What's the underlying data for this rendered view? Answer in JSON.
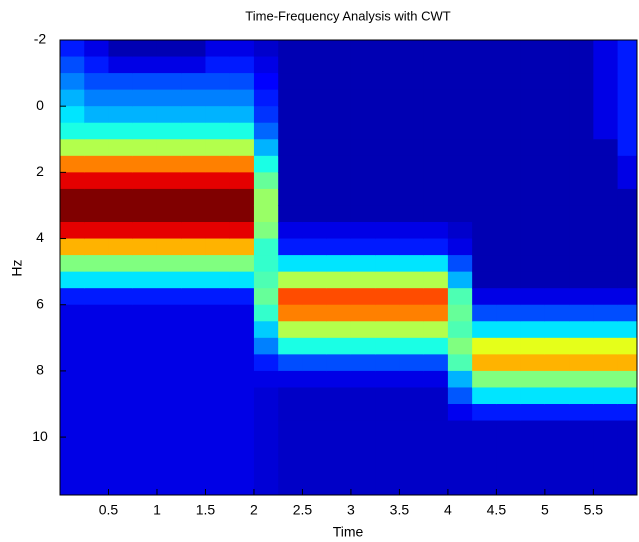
{
  "chart_data": {
    "type": "heatmap",
    "title": "Time-Frequency Analysis with CWT",
    "x_label": "Time",
    "y_label": "Hz",
    "colormap": "jet",
    "clim": [
      0,
      10
    ],
    "xlim": [
      0,
      5.95
    ],
    "ylim": [
      -2,
      11.75
    ],
    "y_inverted": true,
    "xticks": [
      0.5,
      1,
      1.5,
      2,
      2.5,
      3,
      3.5,
      4,
      4.5,
      5,
      5.5
    ],
    "yticks": [
      -2,
      0,
      2,
      4,
      6,
      8,
      10
    ],
    "x": [
      0.125,
      0.375,
      0.625,
      0.875,
      1.125,
      1.375,
      1.625,
      1.875,
      2.125,
      2.375,
      2.625,
      2.875,
      3.125,
      3.375,
      3.625,
      3.875,
      4.125,
      4.375,
      4.625,
      4.875,
      5.125,
      5.375,
      5.625,
      5.875
    ],
    "y": [
      -1.75,
      -1.25,
      -0.75,
      -0.25,
      0.25,
      0.75,
      1.25,
      1.75,
      2.25,
      2.75,
      3.25,
      3.75,
      4.25,
      4.75,
      5.25,
      5.75,
      6.25,
      6.75,
      7.25,
      7.75,
      8.25,
      8.75,
      9.25,
      9.75,
      10.25,
      10.75,
      11.25,
      11.75
    ],
    "z": [
      [
        1.5,
        2,
        2.5,
        3,
        3.5,
        4,
        5.5,
        7.5,
        9,
        10,
        10,
        9,
        7,
        5,
        3.5,
        1.5,
        1,
        1,
        1,
        1,
        1,
        1,
        1,
        1,
        1,
        1,
        1,
        1
      ],
      [
        1,
        1.5,
        2,
        2.5,
        3,
        4,
        5.5,
        7.5,
        9,
        10,
        10,
        9,
        7,
        5,
        3.5,
        1.5,
        1,
        1,
        1,
        1,
        1,
        1,
        1,
        1,
        1,
        1,
        1,
        1
      ],
      [
        0.5,
        1,
        2,
        2.5,
        3,
        4,
        5.5,
        7.5,
        9,
        10,
        10,
        9,
        7,
        5,
        3.5,
        1.5,
        1,
        1,
        1,
        1,
        1,
        1,
        1,
        1,
        1,
        1,
        1,
        1
      ],
      [
        0.5,
        1,
        2,
        2.5,
        3,
        4,
        5.5,
        7.5,
        9,
        10,
        10,
        9,
        7,
        5,
        3.5,
        1.5,
        1,
        1,
        1,
        1,
        1,
        1,
        1,
        1,
        1,
        1,
        1,
        1
      ],
      [
        0.5,
        1,
        2,
        2.5,
        3,
        4,
        5.5,
        7.5,
        9,
        10,
        10,
        9,
        7,
        5,
        3.5,
        1.5,
        1,
        1,
        1,
        1,
        1,
        1,
        1,
        1,
        1,
        1,
        1,
        1
      ],
      [
        0.5,
        1,
        2,
        2.5,
        3,
        4,
        5.5,
        7.5,
        9,
        10,
        10,
        9,
        7,
        5,
        3.5,
        1.5,
        1,
        1,
        1,
        1,
        1,
        1,
        1,
        1,
        1,
        1,
        1,
        1
      ],
      [
        1,
        1.5,
        2,
        2.5,
        3,
        4,
        5.5,
        7.5,
        9,
        10,
        10,
        9,
        7,
        5,
        3.5,
        1.5,
        1,
        1,
        1,
        1,
        1,
        1,
        1,
        1,
        1,
        1,
        1,
        1
      ],
      [
        1,
        1.5,
        2,
        2.5,
        3,
        4,
        5.5,
        7.5,
        9,
        10,
        10,
        9,
        7,
        5,
        3.5,
        1.5,
        1,
        1,
        1,
        1,
        1,
        1,
        1,
        1,
        1,
        1,
        1,
        1
      ],
      [
        0.75,
        1,
        1.25,
        1.5,
        1.75,
        2.25,
        3,
        4,
        4.75,
        5.25,
        5.25,
        5,
        4.25,
        4.25,
        4.5,
        4.75,
        4.25,
        3.25,
        2.5,
        1.5,
        1,
        0.85,
        0.85,
        0.85,
        0.85,
        0.85,
        0.85,
        0.85
      ],
      [
        0.5,
        0.5,
        0.5,
        0.5,
        0.5,
        0.5,
        0.5,
        0.5,
        0.5,
        0.5,
        0.5,
        1,
        1.5,
        3.5,
        5.5,
        8,
        7.5,
        5.5,
        4,
        2,
        1,
        0.7,
        0.7,
        0.7,
        0.7,
        0.7,
        0.7,
        0.7
      ],
      [
        0.5,
        0.5,
        0.5,
        0.5,
        0.5,
        0.5,
        0.5,
        0.5,
        0.5,
        0.5,
        0.5,
        1,
        1.5,
        3.5,
        5.5,
        8,
        7.5,
        5.5,
        4,
        2,
        1,
        0.7,
        0.7,
        0.7,
        0.7,
        0.7,
        0.7,
        0.7
      ],
      [
        0.5,
        0.5,
        0.5,
        0.5,
        0.5,
        0.5,
        0.5,
        0.5,
        0.5,
        0.5,
        0.5,
        1,
        1.5,
        3.5,
        5.5,
        8,
        7.5,
        5.5,
        4,
        2,
        1,
        0.7,
        0.7,
        0.7,
        0.7,
        0.7,
        0.7,
        0.7
      ],
      [
        0.5,
        0.5,
        0.5,
        0.5,
        0.5,
        0.5,
        0.5,
        0.5,
        0.5,
        0.5,
        0.5,
        1,
        1.5,
        3.5,
        5.5,
        8,
        7.5,
        5.5,
        4,
        2,
        1,
        0.7,
        0.7,
        0.7,
        0.7,
        0.7,
        0.7,
        0.7
      ],
      [
        0.5,
        0.5,
        0.5,
        0.5,
        0.5,
        0.5,
        0.5,
        0.5,
        0.5,
        0.5,
        0.5,
        1,
        1.5,
        3.5,
        5.5,
        8,
        7.5,
        5.5,
        4,
        2,
        1,
        0.7,
        0.7,
        0.7,
        0.7,
        0.7,
        0.7,
        0.7
      ],
      [
        0.5,
        0.5,
        0.5,
        0.5,
        0.5,
        0.5,
        0.5,
        0.5,
        0.5,
        0.5,
        0.5,
        1,
        1.5,
        3.5,
        5.5,
        8,
        7.5,
        5.5,
        4,
        2,
        1,
        0.7,
        0.7,
        0.7,
        0.7,
        0.7,
        0.7,
        0.7
      ],
      [
        0.5,
        0.5,
        0.5,
        0.5,
        0.5,
        0.5,
        0.5,
        0.5,
        0.5,
        0.5,
        0.5,
        1,
        1.5,
        3.5,
        5.5,
        8,
        7.5,
        5.5,
        4,
        2,
        1,
        0.7,
        0.7,
        0.7,
        0.7,
        0.7,
        0.7,
        0.7
      ],
      [
        0.5,
        0.5,
        0.5,
        0.5,
        0.5,
        0.5,
        0.5,
        0.5,
        0.5,
        0.5,
        0.5,
        0.75,
        1,
        2,
        3,
        4.5,
        4.75,
        4.5,
        5,
        4.5,
        3,
        2.1,
        1.1,
        0.7,
        0.7,
        0.7,
        0.7,
        0.7
      ],
      [
        0.5,
        0.5,
        0.5,
        0.5,
        0.5,
        0.5,
        0.5,
        0.5,
        0.5,
        0.5,
        0.5,
        0.5,
        0.5,
        0.5,
        0.5,
        1,
        2,
        3.5,
        6,
        7,
        5,
        3.5,
        1.5,
        0.7,
        0.7,
        0.7,
        0.7,
        0.7
      ],
      [
        0.5,
        0.5,
        0.5,
        0.5,
        0.5,
        0.5,
        0.5,
        0.5,
        0.5,
        0.5,
        0.5,
        0.5,
        0.5,
        0.5,
        0.5,
        1,
        2,
        3.5,
        6,
        7,
        5,
        3.5,
        1.5,
        0.7,
        0.7,
        0.7,
        0.7,
        0.7
      ],
      [
        0.5,
        0.5,
        0.5,
        0.5,
        0.5,
        0.5,
        0.5,
        0.5,
        0.5,
        0.5,
        0.5,
        0.5,
        0.5,
        0.5,
        0.5,
        1,
        2,
        3.5,
        6,
        7,
        5,
        3.5,
        1.5,
        0.7,
        0.7,
        0.7,
        0.7,
        0.7
      ],
      [
        0.5,
        0.5,
        0.5,
        0.5,
        0.5,
        0.5,
        0.5,
        0.5,
        0.5,
        0.5,
        0.5,
        0.5,
        0.5,
        0.5,
        0.5,
        1,
        2,
        3.5,
        6,
        7,
        5,
        3.5,
        1.5,
        0.7,
        0.7,
        0.7,
        0.7,
        0.7
      ],
      [
        0.5,
        0.5,
        0.5,
        0.5,
        0.5,
        0.5,
        0.5,
        0.5,
        0.5,
        0.5,
        0.5,
        0.5,
        0.5,
        0.5,
        0.5,
        1,
        2,
        3.5,
        6,
        7,
        5,
        3.5,
        1.5,
        0.7,
        0.7,
        0.7,
        0.7,
        0.7
      ],
      [
        1,
        1,
        1,
        1,
        1,
        1,
        0.5,
        0.5,
        0.5,
        0.5,
        0.5,
        0.5,
        0.5,
        0.5,
        0.5,
        1,
        2,
        3.5,
        6,
        7,
        5,
        3.5,
        1.5,
        0.7,
        0.7,
        0.7,
        0.7,
        0.7
      ],
      [
        1.5,
        1.5,
        1.5,
        1.5,
        1.5,
        1.5,
        1.5,
        1,
        1,
        0.5,
        0.5,
        0.5,
        0.5,
        0.5,
        0.5,
        1,
        2,
        3.5,
        6,
        7,
        5,
        3.5,
        1.5,
        0.7,
        0.7,
        0.7,
        0.7,
        0.7
      ]
    ]
  }
}
